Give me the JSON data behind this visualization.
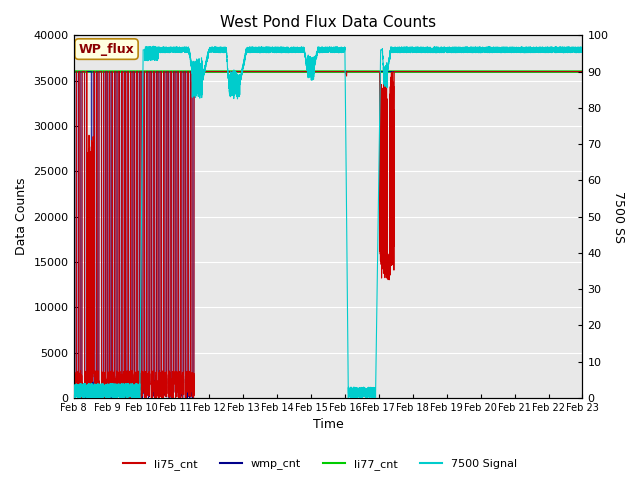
{
  "title": "West Pond Flux Data Counts",
  "xlabel": "Time",
  "ylabel": "Data Counts",
  "ylabel_right": "7500 SS",
  "annotation": "WP_flux",
  "xlim_days": [
    0,
    15
  ],
  "ylim_left": [
    0,
    40000
  ],
  "ylim_right": [
    0,
    100
  ],
  "x_tick_labels": [
    "Feb 8",
    "Feb 9",
    "Feb 10",
    "Feb 11",
    "Feb 12",
    "Feb 13",
    "Feb 14",
    "Feb 15",
    "Feb 16",
    "Feb 17",
    "Feb 18",
    "Feb 19",
    "Feb 20",
    "Feb 21",
    "Feb 22",
    "Feb 23"
  ],
  "bg_color": "#e8e8e8",
  "li77_cnt_value": 36000,
  "legend_labels": [
    "li75_cnt",
    "wmp_cnt",
    "li77_cnt",
    "7500 Signal"
  ],
  "legend_colors": [
    "#cc0000",
    "#00008b",
    "#00cc00",
    "#00cccc"
  ]
}
